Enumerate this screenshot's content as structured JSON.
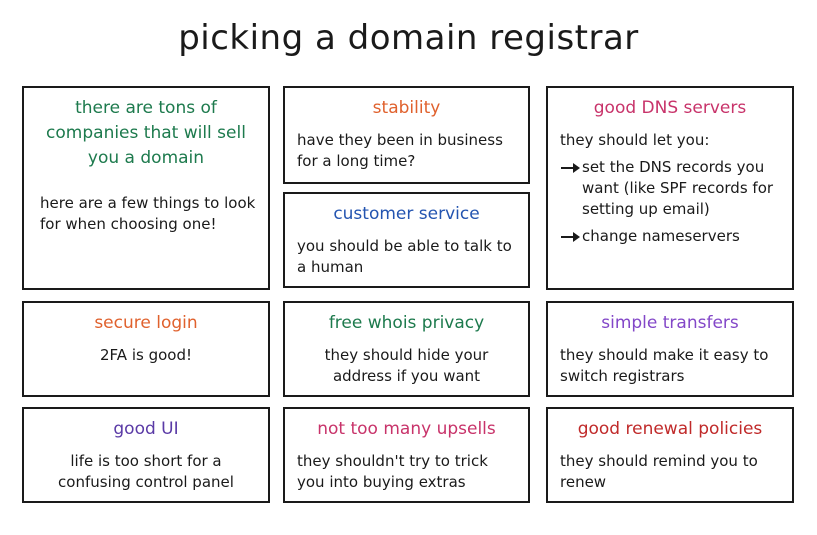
{
  "title": "picking a domain registrar",
  "colors": {
    "green": "#1d7a4d",
    "orange": "#e0612d",
    "blue": "#2354b0",
    "magenta": "#c8336a",
    "purple": "#8347c8",
    "indigo": "#5a3aa6",
    "red": "#c02a2a"
  },
  "intro": {
    "heading": "there are tons of companies that will sell you a domain",
    "body": "here are a few things to look for when choosing one!"
  },
  "stability": {
    "heading": "stability",
    "body": "have they been in business for a long time?"
  },
  "customer_service": {
    "heading": "customer service",
    "body": "you should be able to talk to a human"
  },
  "dns": {
    "heading": "good DNS servers",
    "body": "they should let you:",
    "items": [
      "set the DNS records you want (like SPF records for setting up email)",
      "change nameservers"
    ]
  },
  "secure_login": {
    "heading": "secure login",
    "body": "2FA is good!"
  },
  "whois": {
    "heading": "free whois privacy",
    "body": "they should hide your address if you want"
  },
  "transfers": {
    "heading": "simple transfers",
    "body": "they should make it easy to switch registrars"
  },
  "ui": {
    "heading": "good UI",
    "body": "life is too short for a confusing control panel"
  },
  "upsells": {
    "heading": "not too many upsells",
    "body": "they shouldn't try to trick you into buying extras"
  },
  "renewal": {
    "heading": "good renewal policies",
    "body": "they should remind you to renew"
  }
}
